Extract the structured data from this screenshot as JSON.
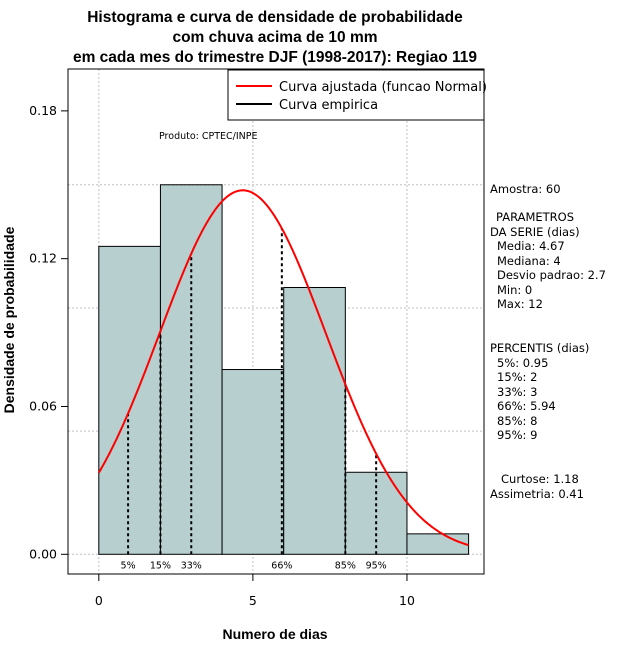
{
  "chart_data": {
    "type": "bar",
    "title_lines": [
      "Histograma e curva de densidade de probabilidade",
      "com chuva acima de 10 mm",
      "em cada mes do trimestre DJF (1998-2017): Regiao 119"
    ],
    "xlabel": "Numero de dias",
    "ylabel": "Densidade de probabilidade",
    "xlim": [
      -1,
      12.5
    ],
    "ylim": [
      -0.008,
      0.197
    ],
    "x_ticks": [
      {
        "value": 0,
        "label": "0"
      },
      {
        "value": 5,
        "label": "5"
      },
      {
        "value": 10,
        "label": "10"
      }
    ],
    "y_ticks": [
      {
        "value": 0.0,
        "label": "0.00"
      },
      {
        "value": 0.06,
        "label": "0.06"
      },
      {
        "value": 0.12,
        "label": "0.12"
      },
      {
        "value": 0.18,
        "label": "0.18"
      }
    ],
    "grid": true,
    "grid_x": [
      0,
      5,
      10
    ],
    "grid_y": [
      0.0,
      0.05,
      0.1,
      0.15
    ],
    "bins": [
      {
        "start": 0,
        "end": 2,
        "density": 0.125
      },
      {
        "start": 2,
        "end": 4,
        "density": 0.15
      },
      {
        "start": 4,
        "end": 6,
        "density": 0.075
      },
      {
        "start": 6,
        "end": 8,
        "density": 0.1083
      },
      {
        "start": 8,
        "end": 10,
        "density": 0.0333
      },
      {
        "start": 10,
        "end": 12,
        "density": 0.0083
      }
    ],
    "bar_color": "#b7cfcf",
    "fitted_curve": {
      "name": "Curva ajustada (funcao Normal)",
      "mean": 4.67,
      "sd": 2.7,
      "x_from": 0,
      "x_to": 12,
      "color": "#ff0000"
    },
    "empirical_curve": {
      "name": "Curva empirica",
      "color": "#000000"
    },
    "legend_position": "top-right",
    "percentile_markers": [
      {
        "value": 0.95,
        "label": "5%"
      },
      {
        "value": 2,
        "label": "15%"
      },
      {
        "value": 3,
        "label": "33%"
      },
      {
        "value": 5.94,
        "label": "66%"
      },
      {
        "value": 8,
        "label": "85%"
      },
      {
        "value": 9,
        "label": "95%"
      }
    ],
    "annotations": {
      "produto": "Produto: CPTEC/INPE",
      "amostra": "Amostra: 60",
      "parametros_title_1": "PARAMETROS",
      "parametros_title_2": "DA SERIE (dias)",
      "parametros": [
        "Media: 4.67",
        "Mediana: 4",
        "Desvio padrao: 2.7",
        "Min: 0",
        "Max: 12"
      ],
      "percentis_title": "PERCENTIS (dias)",
      "percentis": [
        "5%: 0.95",
        "15%: 2",
        "33%: 3",
        "66%: 5.94",
        "85%: 8",
        "95%: 9"
      ],
      "curtose": "Curtose: 1.18",
      "assimetria": "Assimetria: 0.41"
    }
  }
}
